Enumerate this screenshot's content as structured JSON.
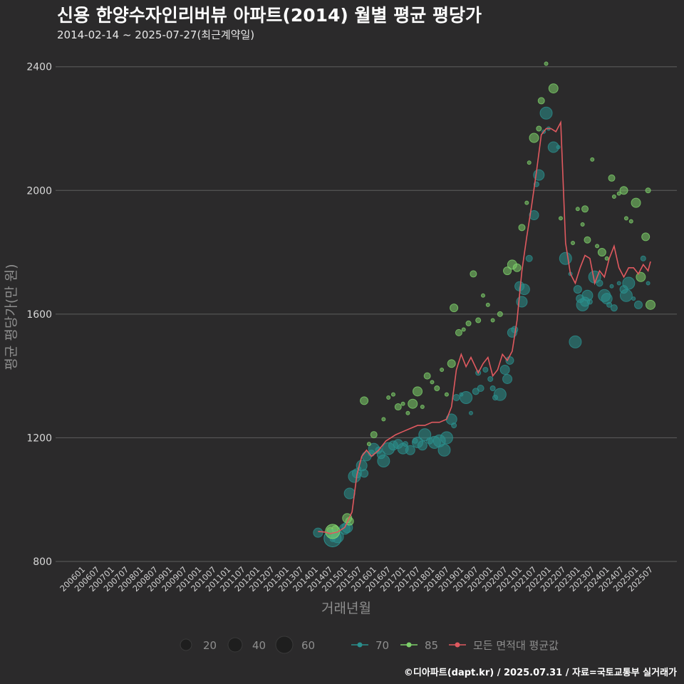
{
  "title": "신용 한양수자인리버뷰 아파트(2014) 월별 평균 평당가",
  "subtitle": "2014-02-14 ~ 2025-07-27(최근계약일)",
  "caption": "©디아파트(dapt.kr) / 2025.07.31 / 자료=국토교통부 실거래가",
  "colors": {
    "background": "#2b2a2b",
    "grid": "#5e5e5e",
    "area70": "#2a8f8d",
    "area85": "#7dcf6a",
    "avg": "#e0595f"
  },
  "chart_data": {
    "type": "scatter",
    "xlabel": "거래년월",
    "ylabel": "평균 평당가(만 원)",
    "ylim": [
      800,
      2450
    ],
    "yticks": [
      800,
      1200,
      1600,
      2000,
      2400
    ],
    "xlim": [
      "2006-01",
      "2025-07"
    ],
    "xticks": [
      "200601",
      "200607",
      "200701",
      "200707",
      "200801",
      "200807",
      "200901",
      "200907",
      "201001",
      "201007",
      "201101",
      "201107",
      "201201",
      "201207",
      "201301",
      "201307",
      "201401",
      "201407",
      "201501",
      "201507",
      "201601",
      "201607",
      "201701",
      "201707",
      "201801",
      "201807",
      "201901",
      "201907",
      "202001",
      "202007",
      "202101",
      "202107",
      "202201",
      "202207",
      "202301",
      "202307",
      "202401",
      "202407",
      "202501",
      "202507"
    ],
    "legend": {
      "size": {
        "values": [
          20,
          40,
          60
        ],
        "labels": [
          "20",
          "40",
          "60"
        ]
      },
      "series": [
        {
          "key": "area70",
          "label": "70"
        },
        {
          "key": "area85",
          "label": "85"
        },
        {
          "key": "avg",
          "label": "모든 면적대 평균값"
        }
      ]
    },
    "series": [
      {
        "name": "70",
        "points": [
          [
            "2014-02",
            893
          ],
          [
            "2014-07",
            880
          ],
          [
            "2014-08",
            872
          ],
          [
            "2014-09",
            885
          ],
          [
            "2014-10",
            880
          ],
          [
            "2015-01",
            905
          ],
          [
            "2015-02",
            910
          ],
          [
            "2015-03",
            1020
          ],
          [
            "2015-05",
            1075
          ],
          [
            "2015-06",
            1085
          ],
          [
            "2015-07",
            1100
          ],
          [
            "2015-08",
            1110
          ],
          [
            "2015-09",
            1085
          ],
          [
            "2015-10",
            1140
          ],
          [
            "2015-12",
            1150
          ],
          [
            "2016-01",
            1165
          ],
          [
            "2016-03",
            1160
          ],
          [
            "2016-04",
            1145
          ],
          [
            "2016-05",
            1125
          ],
          [
            "2016-07",
            1165
          ],
          [
            "2016-09",
            1175
          ],
          [
            "2016-11",
            1180
          ],
          [
            "2017-01",
            1165
          ],
          [
            "2017-02",
            1180
          ],
          [
            "2017-04",
            1160
          ],
          [
            "2017-06",
            1190
          ],
          [
            "2017-07",
            1185
          ],
          [
            "2017-09",
            1175
          ],
          [
            "2017-10",
            1210
          ],
          [
            "2017-12",
            1190
          ],
          [
            "2018-02",
            1185
          ],
          [
            "2018-04",
            1190
          ],
          [
            "2018-06",
            1160
          ],
          [
            "2018-07",
            1200
          ],
          [
            "2018-09",
            1260
          ],
          [
            "2018-10",
            1240
          ],
          [
            "2018-11",
            1330
          ],
          [
            "2019-01",
            1340
          ],
          [
            "2019-03",
            1330
          ],
          [
            "2019-05",
            1280
          ],
          [
            "2019-07",
            1350
          ],
          [
            "2019-08",
            1410
          ],
          [
            "2019-09",
            1360
          ],
          [
            "2019-11",
            1420
          ],
          [
            "2020-01",
            1390
          ],
          [
            "2020-02",
            1360
          ],
          [
            "2020-03",
            1330
          ],
          [
            "2020-05",
            1340
          ],
          [
            "2020-07",
            1420
          ],
          [
            "2020-08",
            1390
          ],
          [
            "2020-09",
            1450
          ],
          [
            "2020-10",
            1540
          ],
          [
            "2020-11",
            1550
          ],
          [
            "2021-01",
            1690
          ],
          [
            "2021-02",
            1640
          ],
          [
            "2021-03",
            1680
          ],
          [
            "2021-05",
            1780
          ],
          [
            "2021-07",
            1920
          ],
          [
            "2021-08",
            2020
          ],
          [
            "2021-09",
            2050
          ],
          [
            "2021-11",
            2190
          ],
          [
            "2021-12",
            2250
          ],
          [
            "2022-01",
            2200
          ],
          [
            "2022-03",
            2140
          ],
          [
            "2022-05",
            2140
          ],
          [
            "2022-08",
            1780
          ],
          [
            "2022-10",
            1730
          ],
          [
            "2022-12",
            1510
          ],
          [
            "2023-01",
            1680
          ],
          [
            "2023-02",
            1650
          ],
          [
            "2023-03",
            1630
          ],
          [
            "2023-04",
            1640
          ],
          [
            "2023-05",
            1660
          ],
          [
            "2023-06",
            1640
          ],
          [
            "2023-08",
            1720
          ],
          [
            "2023-10",
            1700
          ],
          [
            "2023-12",
            1660
          ],
          [
            "2024-01",
            1650
          ],
          [
            "2024-02",
            1630
          ],
          [
            "2024-03",
            1690
          ],
          [
            "2024-04",
            1620
          ],
          [
            "2024-06",
            1700
          ],
          [
            "2024-08",
            1680
          ],
          [
            "2024-09",
            1660
          ],
          [
            "2024-10",
            1700
          ],
          [
            "2024-12",
            1650
          ],
          [
            "2025-02",
            1630
          ],
          [
            "2025-04",
            1780
          ],
          [
            "2025-06",
            1700
          ]
        ]
      },
      {
        "name": "85",
        "points": [
          [
            "2014-07",
            900
          ],
          [
            "2014-09",
            905
          ],
          [
            "2015-02",
            940
          ],
          [
            "2015-03",
            930
          ],
          [
            "2015-09",
            1320
          ],
          [
            "2015-11",
            1180
          ],
          [
            "2016-01",
            1210
          ],
          [
            "2016-05",
            1260
          ],
          [
            "2016-07",
            1330
          ],
          [
            "2016-09",
            1340
          ],
          [
            "2016-11",
            1300
          ],
          [
            "2017-01",
            1310
          ],
          [
            "2017-03",
            1280
          ],
          [
            "2017-05",
            1310
          ],
          [
            "2017-07",
            1350
          ],
          [
            "2017-09",
            1300
          ],
          [
            "2017-11",
            1400
          ],
          [
            "2018-01",
            1380
          ],
          [
            "2018-03",
            1360
          ],
          [
            "2018-05",
            1420
          ],
          [
            "2018-07",
            1340
          ],
          [
            "2018-09",
            1440
          ],
          [
            "2018-10",
            1620
          ],
          [
            "2018-12",
            1540
          ],
          [
            "2019-02",
            1550
          ],
          [
            "2019-04",
            1570
          ],
          [
            "2019-06",
            1730
          ],
          [
            "2019-08",
            1580
          ],
          [
            "2019-10",
            1660
          ],
          [
            "2019-12",
            1630
          ],
          [
            "2020-02",
            1580
          ],
          [
            "2020-05",
            1600
          ],
          [
            "2020-08",
            1740
          ],
          [
            "2020-10",
            1760
          ],
          [
            "2020-12",
            1750
          ],
          [
            "2021-02",
            1880
          ],
          [
            "2021-04",
            1960
          ],
          [
            "2021-05",
            2090
          ],
          [
            "2021-07",
            2170
          ],
          [
            "2021-09",
            2200
          ],
          [
            "2021-10",
            2290
          ],
          [
            "2021-12",
            2410
          ],
          [
            "2022-03",
            2330
          ],
          [
            "2022-06",
            1910
          ],
          [
            "2022-11",
            1830
          ],
          [
            "2023-01",
            1940
          ],
          [
            "2023-03",
            1890
          ],
          [
            "2023-04",
            1940
          ],
          [
            "2023-05",
            1840
          ],
          [
            "2023-07",
            2100
          ],
          [
            "2023-09",
            1820
          ],
          [
            "2023-11",
            1800
          ],
          [
            "2024-01",
            1780
          ],
          [
            "2024-03",
            2040
          ],
          [
            "2024-04",
            1980
          ],
          [
            "2024-06",
            1990
          ],
          [
            "2024-08",
            2000
          ],
          [
            "2024-09",
            1910
          ],
          [
            "2024-11",
            1900
          ],
          [
            "2025-01",
            1960
          ],
          [
            "2025-03",
            1720
          ],
          [
            "2025-05",
            1850
          ],
          [
            "2025-06",
            2000
          ],
          [
            "2025-07",
            1630
          ]
        ]
      },
      {
        "name": "모든 면적대 평균값",
        "points": [
          [
            "2014-02",
            897
          ],
          [
            "2014-05",
            895
          ],
          [
            "2014-07",
            890
          ],
          [
            "2014-10",
            895
          ],
          [
            "2015-01",
            910
          ],
          [
            "2015-04",
            960
          ],
          [
            "2015-06",
            1080
          ],
          [
            "2015-08",
            1140
          ],
          [
            "2015-10",
            1160
          ],
          [
            "2015-12",
            1140
          ],
          [
            "2016-03",
            1160
          ],
          [
            "2016-06",
            1190
          ],
          [
            "2016-08",
            1200
          ],
          [
            "2016-10",
            1210
          ],
          [
            "2017-01",
            1220
          ],
          [
            "2017-04",
            1230
          ],
          [
            "2017-07",
            1240
          ],
          [
            "2017-10",
            1240
          ],
          [
            "2018-01",
            1250
          ],
          [
            "2018-04",
            1250
          ],
          [
            "2018-07",
            1260
          ],
          [
            "2018-09",
            1300
          ],
          [
            "2018-11",
            1420
          ],
          [
            "2019-01",
            1470
          ],
          [
            "2019-03",
            1430
          ],
          [
            "2019-05",
            1460
          ],
          [
            "2019-08",
            1410
          ],
          [
            "2019-10",
            1440
          ],
          [
            "2019-12",
            1460
          ],
          [
            "2020-02",
            1400
          ],
          [
            "2020-04",
            1420
          ],
          [
            "2020-06",
            1470
          ],
          [
            "2020-08",
            1450
          ],
          [
            "2020-10",
            1480
          ],
          [
            "2020-12",
            1580
          ],
          [
            "2021-02",
            1740
          ],
          [
            "2021-04",
            1850
          ],
          [
            "2021-06",
            1950
          ],
          [
            "2021-08",
            2060
          ],
          [
            "2021-10",
            2180
          ],
          [
            "2021-12",
            2200
          ],
          [
            "2022-02",
            2200
          ],
          [
            "2022-04",
            2190
          ],
          [
            "2022-06",
            2220
          ],
          [
            "2022-08",
            1830
          ],
          [
            "2022-10",
            1730
          ],
          [
            "2022-12",
            1700
          ],
          [
            "2023-02",
            1750
          ],
          [
            "2023-04",
            1790
          ],
          [
            "2023-06",
            1780
          ],
          [
            "2023-08",
            1700
          ],
          [
            "2023-10",
            1740
          ],
          [
            "2023-12",
            1720
          ],
          [
            "2024-02",
            1780
          ],
          [
            "2024-04",
            1820
          ],
          [
            "2024-06",
            1750
          ],
          [
            "2024-08",
            1720
          ],
          [
            "2024-10",
            1750
          ],
          [
            "2024-12",
            1750
          ],
          [
            "2025-02",
            1730
          ],
          [
            "2025-04",
            1760
          ],
          [
            "2025-06",
            1740
          ],
          [
            "2025-07",
            1770
          ]
        ]
      }
    ]
  }
}
